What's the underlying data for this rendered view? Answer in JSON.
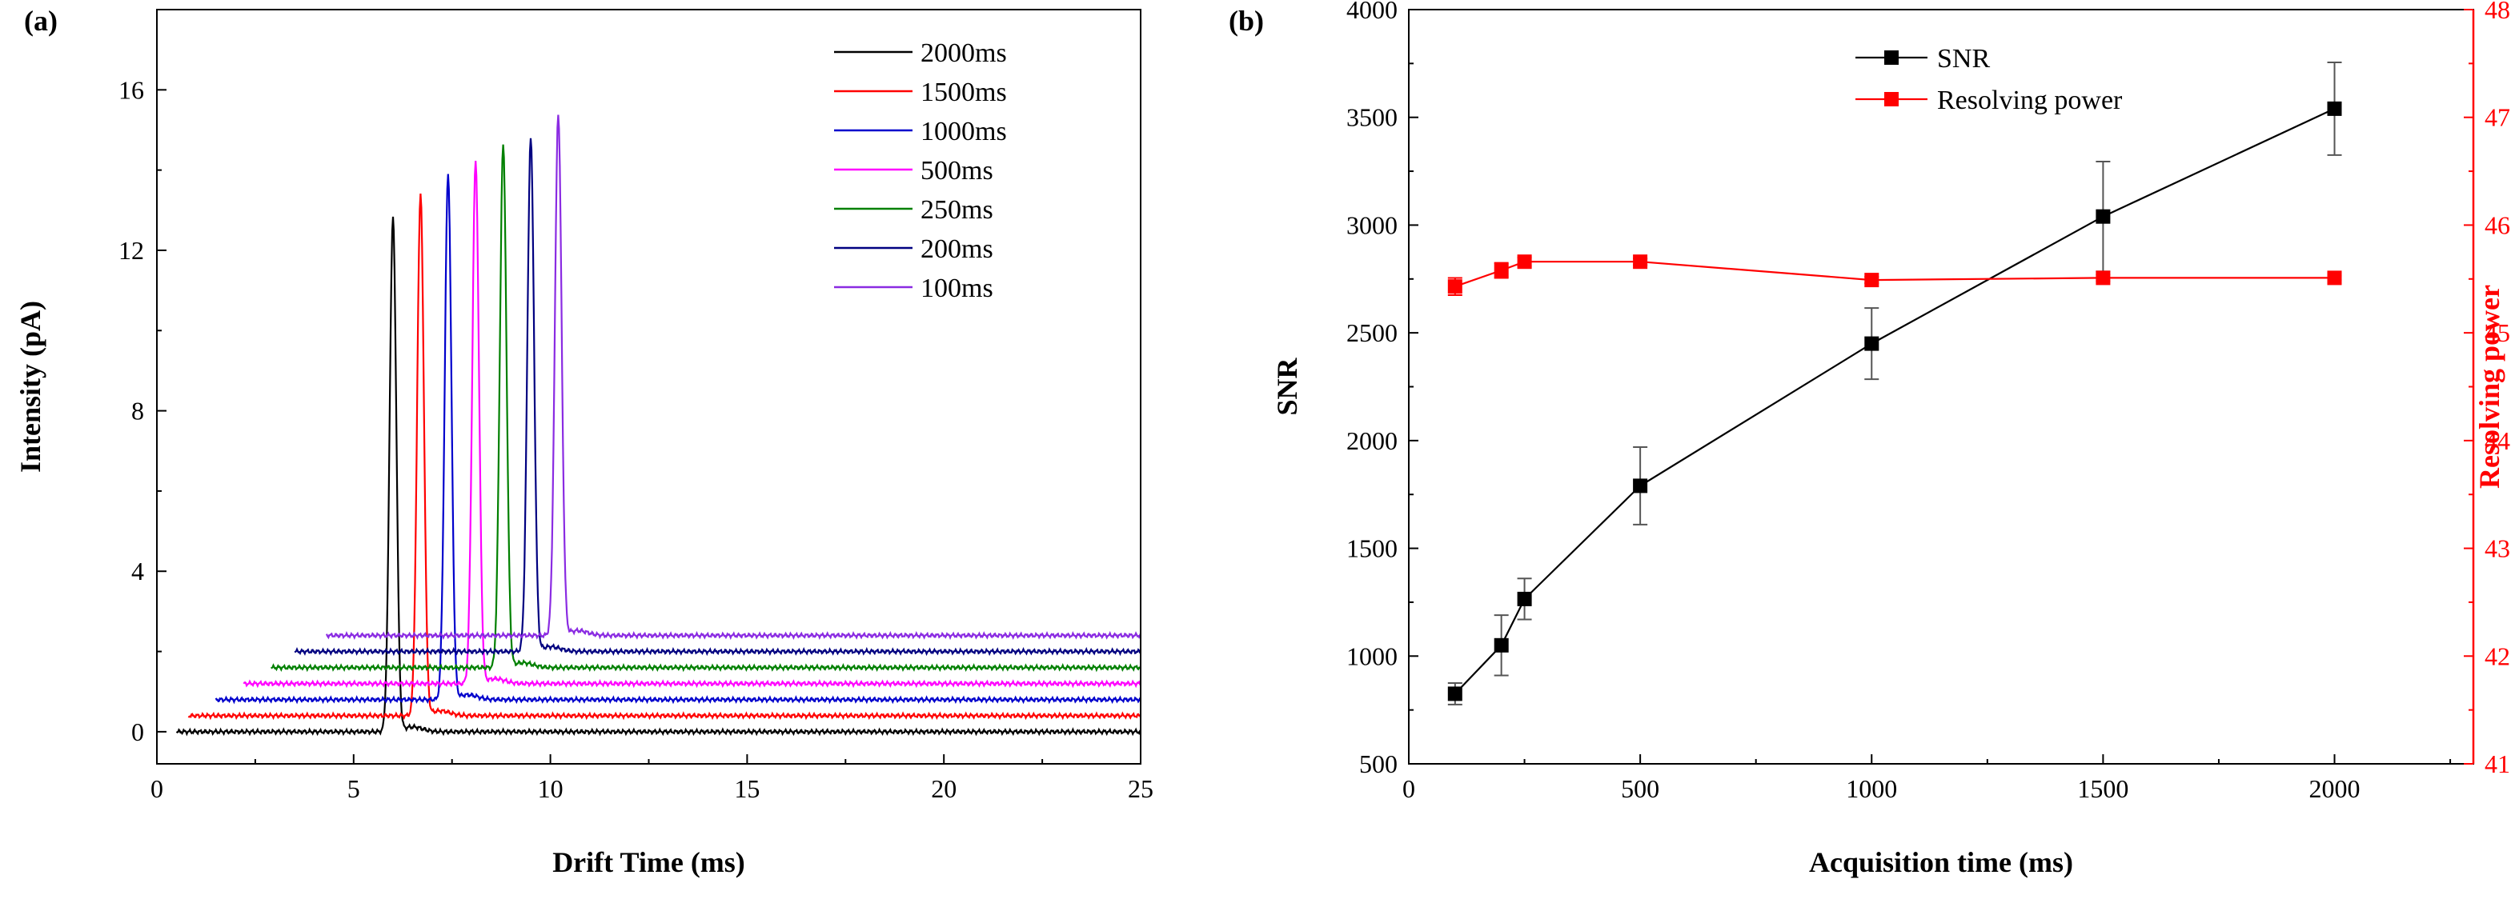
{
  "chart_data": [
    {
      "type": "line",
      "panel_label": "(a)",
      "title": "",
      "xlabel": "Drift Time (ms)",
      "ylabel": "Intensity (pA)",
      "xlim": [
        0,
        25
      ],
      "ylim": [
        -0.8,
        18
      ],
      "xticks": [
        0,
        5,
        10,
        15,
        20,
        25
      ],
      "yticks": [
        0,
        4,
        8,
        12,
        16
      ],
      "legend_position": "top-right",
      "series": [
        {
          "name": "2000ms",
          "color": "#000000",
          "baseline": 0.0,
          "start": 0.5,
          "peak_x": 6.0,
          "peak_y": 12.8
        },
        {
          "name": "1500ms",
          "color": "#ff0000",
          "baseline": 0.4,
          "start": 0.8,
          "peak_x": 6.7,
          "peak_y": 13.4
        },
        {
          "name": "1000ms",
          "color": "#0000cc",
          "baseline": 0.8,
          "start": 1.5,
          "peak_x": 7.4,
          "peak_y": 13.9
        },
        {
          "name": "500ms",
          "color": "#ff00ff",
          "baseline": 1.2,
          "start": 2.2,
          "peak_x": 8.1,
          "peak_y": 14.2
        },
        {
          "name": "250ms",
          "color": "#008000",
          "baseline": 1.6,
          "start": 2.9,
          "peak_x": 8.8,
          "peak_y": 14.6
        },
        {
          "name": "200ms",
          "color": "#000080",
          "baseline": 2.0,
          "start": 3.5,
          "peak_x": 9.5,
          "peak_y": 14.8
        },
        {
          "name": "100ms",
          "color": "#8a2be2",
          "baseline": 2.4,
          "start": 4.3,
          "peak_x": 10.2,
          "peak_y": 15.4
        }
      ]
    },
    {
      "type": "line",
      "panel_label": "(b)",
      "title": "",
      "xlabel": "Acquisition time (ms)",
      "ylabel": "SNR",
      "y2label": "Resolving power",
      "xlim": [
        0,
        2300
      ],
      "ylim": [
        500,
        4000
      ],
      "y2lim": [
        41,
        48
      ],
      "xticks": [
        0,
        500,
        1000,
        1500,
        2000
      ],
      "yticks": [
        500,
        1000,
        1500,
        2000,
        2500,
        3000,
        3500,
        4000
      ],
      "y2ticks": [
        41,
        42,
        43,
        44,
        45,
        46,
        47,
        48
      ],
      "legend_position": "top-center",
      "x": [
        100,
        200,
        250,
        500,
        1000,
        1500,
        2000
      ],
      "series": [
        {
          "name": "SNR",
          "axis": "left",
          "color": "#000000",
          "values": [
            825,
            1050,
            1265,
            1790,
            2450,
            3040,
            3540
          ],
          "errors": [
            50,
            140,
            95,
            180,
            165,
            255,
            215
          ]
        },
        {
          "name": "Resolving power",
          "axis": "right",
          "color": "#ff0000",
          "values": [
            45.43,
            45.58,
            45.66,
            45.66,
            45.49,
            45.51,
            45.51
          ],
          "errors": [
            0.08,
            0.07,
            0.04,
            0.03,
            0.03,
            0.03,
            0.02
          ]
        }
      ]
    }
  ]
}
